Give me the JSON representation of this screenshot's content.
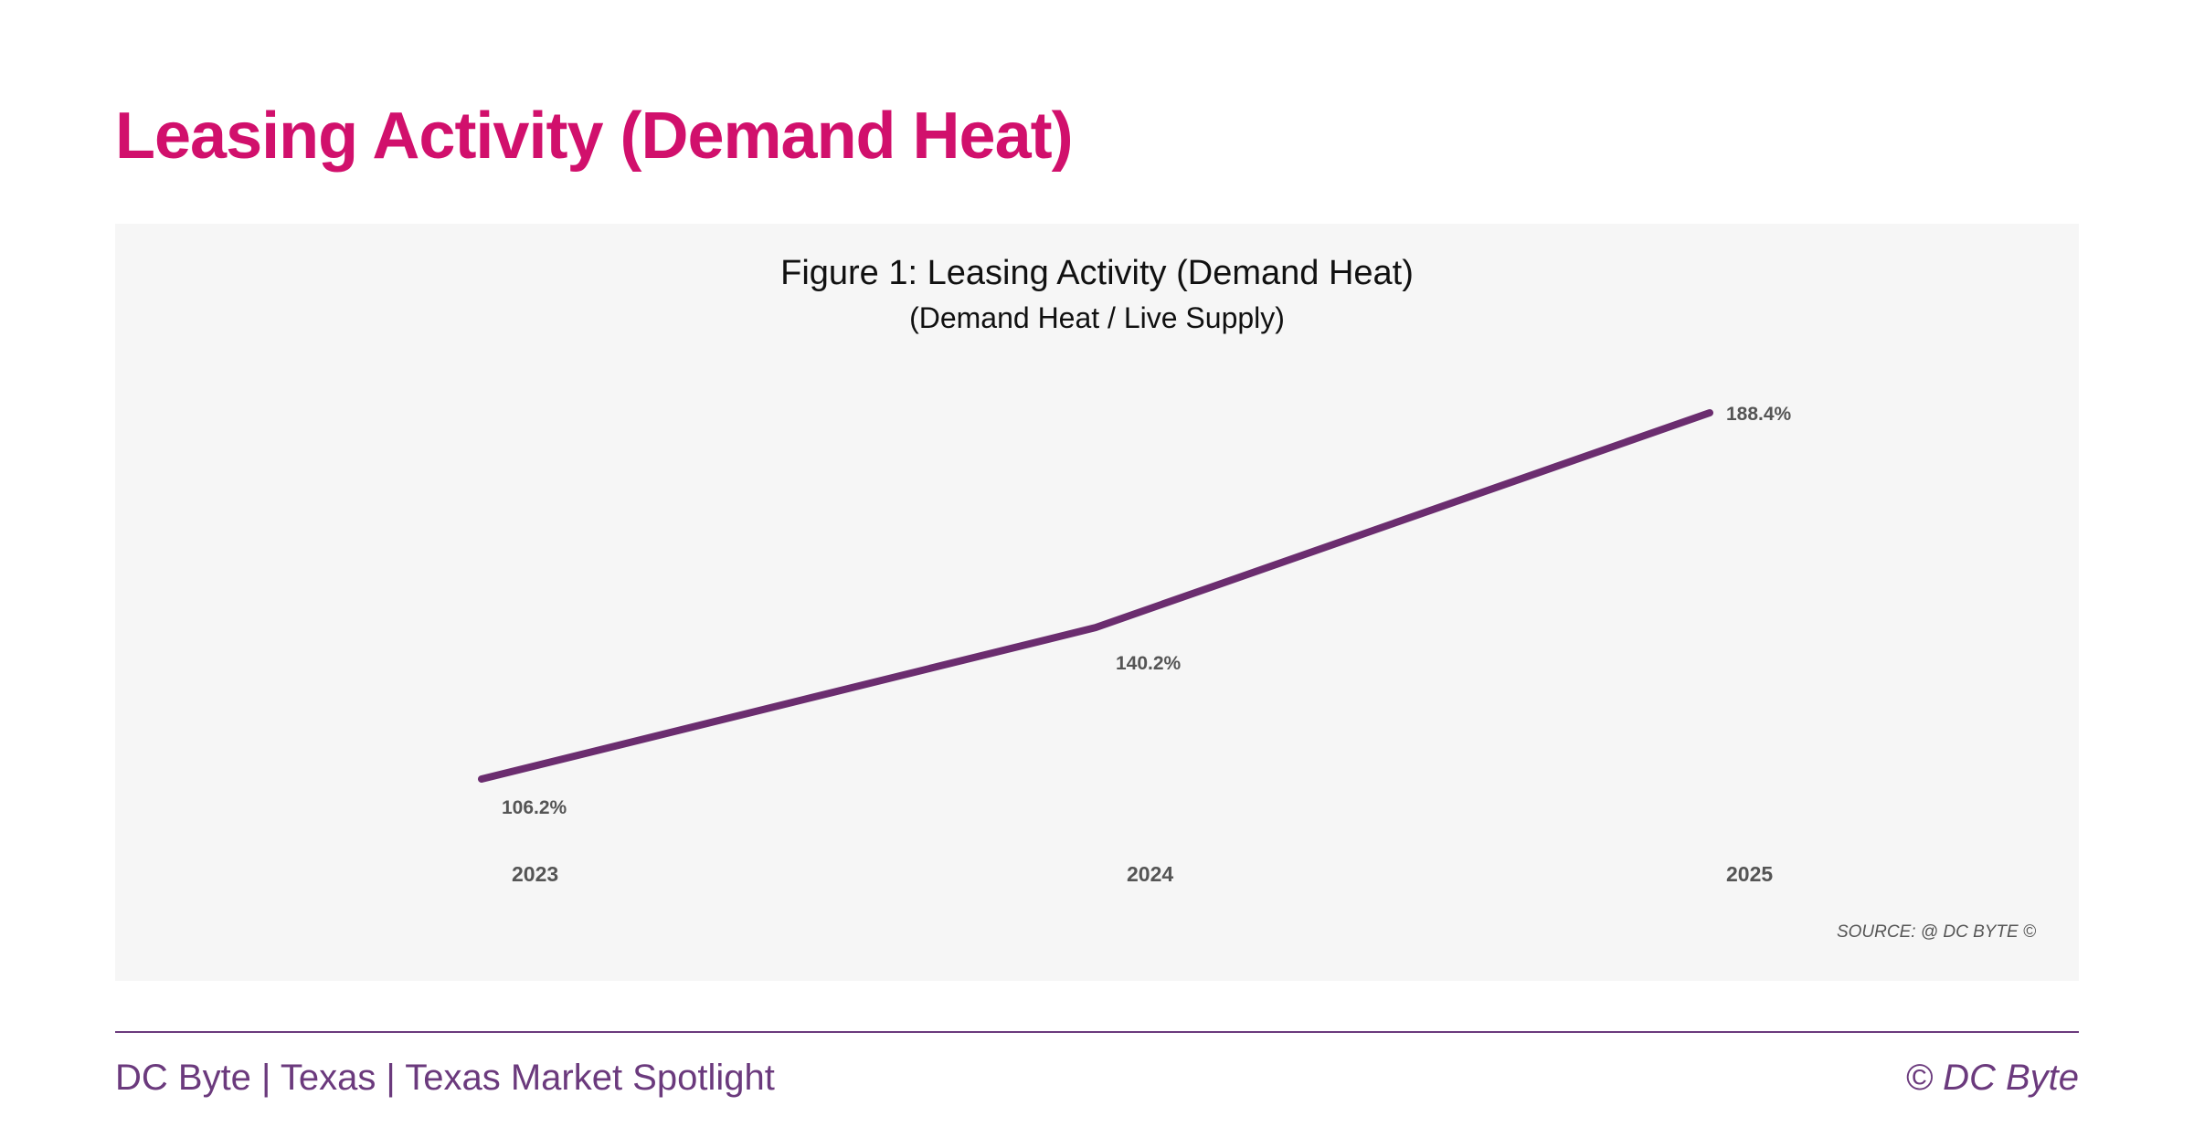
{
  "header": {
    "title": "Leasing Activity (Demand Heat)"
  },
  "chart_data": {
    "type": "line",
    "title": "Figure 1: Leasing Activity (Demand Heat)",
    "subtitle": "(Demand Heat / Live Supply)",
    "categories": [
      "2023",
      "2024",
      "2025"
    ],
    "values": [
      106.2,
      140.2,
      188.4
    ],
    "data_labels": [
      "106.2%",
      "140.2%",
      "188.4%"
    ],
    "xlabel": "",
    "ylabel": "",
    "grid": false,
    "legend": "none",
    "line_color": "#6b2d6f",
    "source": "SOURCE: @ DC BYTE ©"
  },
  "footer": {
    "left": "DC Byte | Texas | Texas Market Spotlight",
    "right": "© DC Byte"
  },
  "colors": {
    "title": "#d1106c",
    "footer": "#6b3a7d",
    "panel": "#f6f6f6"
  }
}
